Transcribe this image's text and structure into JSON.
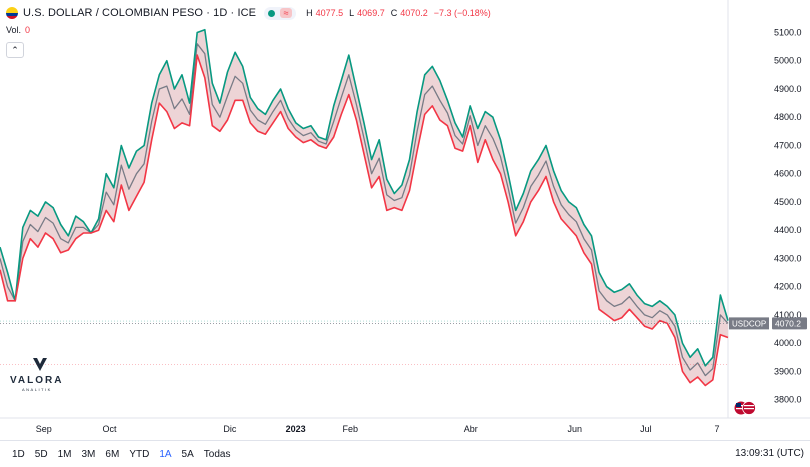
{
  "header": {
    "title": "U.S. DOLLAR / COLOMBIAN PESO · 1D · ICE",
    "high_label": "H",
    "high": "4077.5",
    "low_label": "L",
    "low": "4069.7",
    "close_label": "C",
    "close": "4070.2",
    "change": "−7.3 (−0.18%)"
  },
  "volume": {
    "label": "Vol.",
    "value": "0"
  },
  "price_tag": {
    "symbol": "USDCOP",
    "value": "4070.2"
  },
  "logo": {
    "name": "VALORA",
    "sub": "ANALITIK"
  },
  "ranges": [
    "1D",
    "5D",
    "1M",
    "3M",
    "6M",
    "YTD",
    "1A",
    "5A",
    "Todas"
  ],
  "active_range": "1A",
  "clock": "13:09:31 (UTC)",
  "colors": {
    "up": "#089981",
    "down": "#f23645",
    "close": "#787b86",
    "fill": "#ebcfd2",
    "tag": "#787b86"
  },
  "chart_data": {
    "type": "area",
    "title": "U.S. DOLLAR / COLOMBIAN PESO · 1D · ICE",
    "x_ticks": [
      "Sep",
      "Oct",
      "Dic",
      "2023",
      "Feb",
      "Abr",
      "Jun",
      "Jul",
      "7"
    ],
    "y_ticks": [
      3800,
      3900,
      4000,
      4100,
      4200,
      4300,
      4400,
      4500,
      4600,
      4700,
      4800,
      4900,
      5000,
      5100
    ],
    "ylim": [
      3735,
      5215
    ],
    "grid": false,
    "series": [
      {
        "name": "H",
        "values": [
          4340,
          4250,
          4150,
          4410,
          4470,
          4450,
          4500,
          4480,
          4420,
          4380,
          4450,
          4430,
          4390,
          4440,
          4600,
          4550,
          4700,
          4620,
          4680,
          4700,
          4850,
          4950,
          5000,
          4900,
          4950,
          4850,
          5100,
          5110,
          4920,
          4850,
          4960,
          5030,
          4980,
          4870,
          4830,
          4810,
          4860,
          4900,
          4830,
          4780,
          4760,
          4770,
          4730,
          4720,
          4840,
          4930,
          5020,
          4900,
          4780,
          4650,
          4720,
          4580,
          4530,
          4560,
          4650,
          4820,
          4950,
          4980,
          4930,
          4860,
          4780,
          4730,
          4840,
          4760,
          4820,
          4800,
          4720,
          4600,
          4470,
          4530,
          4610,
          4650,
          4700,
          4610,
          4540,
          4500,
          4480,
          4420,
          4380,
          4250,
          4200,
          4180,
          4190,
          4210,
          4170,
          4140,
          4130,
          4150,
          4130,
          4100,
          4000,
          3950,
          3980,
          3920,
          3950,
          4170,
          4080
        ]
      },
      {
        "name": "L",
        "values": [
          4260,
          4150,
          4150,
          4300,
          4370,
          4340,
          4390,
          4370,
          4320,
          4330,
          4370,
          4390,
          4390,
          4400,
          4470,
          4430,
          4560,
          4470,
          4520,
          4570,
          4720,
          4850,
          4820,
          4760,
          4780,
          4770,
          5020,
          4940,
          4770,
          4750,
          4790,
          4860,
          4860,
          4780,
          4750,
          4740,
          4780,
          4820,
          4760,
          4730,
          4710,
          4720,
          4700,
          4690,
          4730,
          4810,
          4880,
          4790,
          4670,
          4550,
          4590,
          4470,
          4480,
          4470,
          4540,
          4680,
          4810,
          4840,
          4790,
          4770,
          4690,
          4680,
          4770,
          4640,
          4720,
          4650,
          4600,
          4500,
          4380,
          4430,
          4500,
          4540,
          4590,
          4500,
          4440,
          4410,
          4380,
          4320,
          4280,
          4120,
          4100,
          4080,
          4090,
          4120,
          4090,
          4060,
          4050,
          4080,
          4070,
          4020,
          3900,
          3860,
          3880,
          3850,
          3870,
          4030,
          4020
        ]
      },
      {
        "name": "C",
        "values": [
          4300,
          4200,
          4150,
          4360,
          4420,
          4395,
          4445,
          4425,
          4370,
          4355,
          4410,
          4410,
          4390,
          4420,
          4535,
          4490,
          4630,
          4545,
          4600,
          4635,
          4785,
          4900,
          4910,
          4830,
          4865,
          4810,
          5060,
          5025,
          4845,
          4800,
          4875,
          4945,
          4920,
          4825,
          4790,
          4775,
          4820,
          4860,
          4795,
          4755,
          4735,
          4745,
          4715,
          4705,
          4785,
          4870,
          4950,
          4845,
          4725,
          4600,
          4655,
          4525,
          4505,
          4515,
          4595,
          4750,
          4880,
          4910,
          4860,
          4815,
          4735,
          4705,
          4805,
          4700,
          4770,
          4725,
          4660,
          4550,
          4425,
          4480,
          4555,
          4595,
          4645,
          4555,
          4490,
          4455,
          4430,
          4370,
          4330,
          4185,
          4150,
          4130,
          4140,
          4165,
          4130,
          4100,
          4090,
          4115,
          4100,
          4060,
          3950,
          3905,
          3930,
          3885,
          3910,
          4100,
          4070
        ]
      }
    ]
  }
}
